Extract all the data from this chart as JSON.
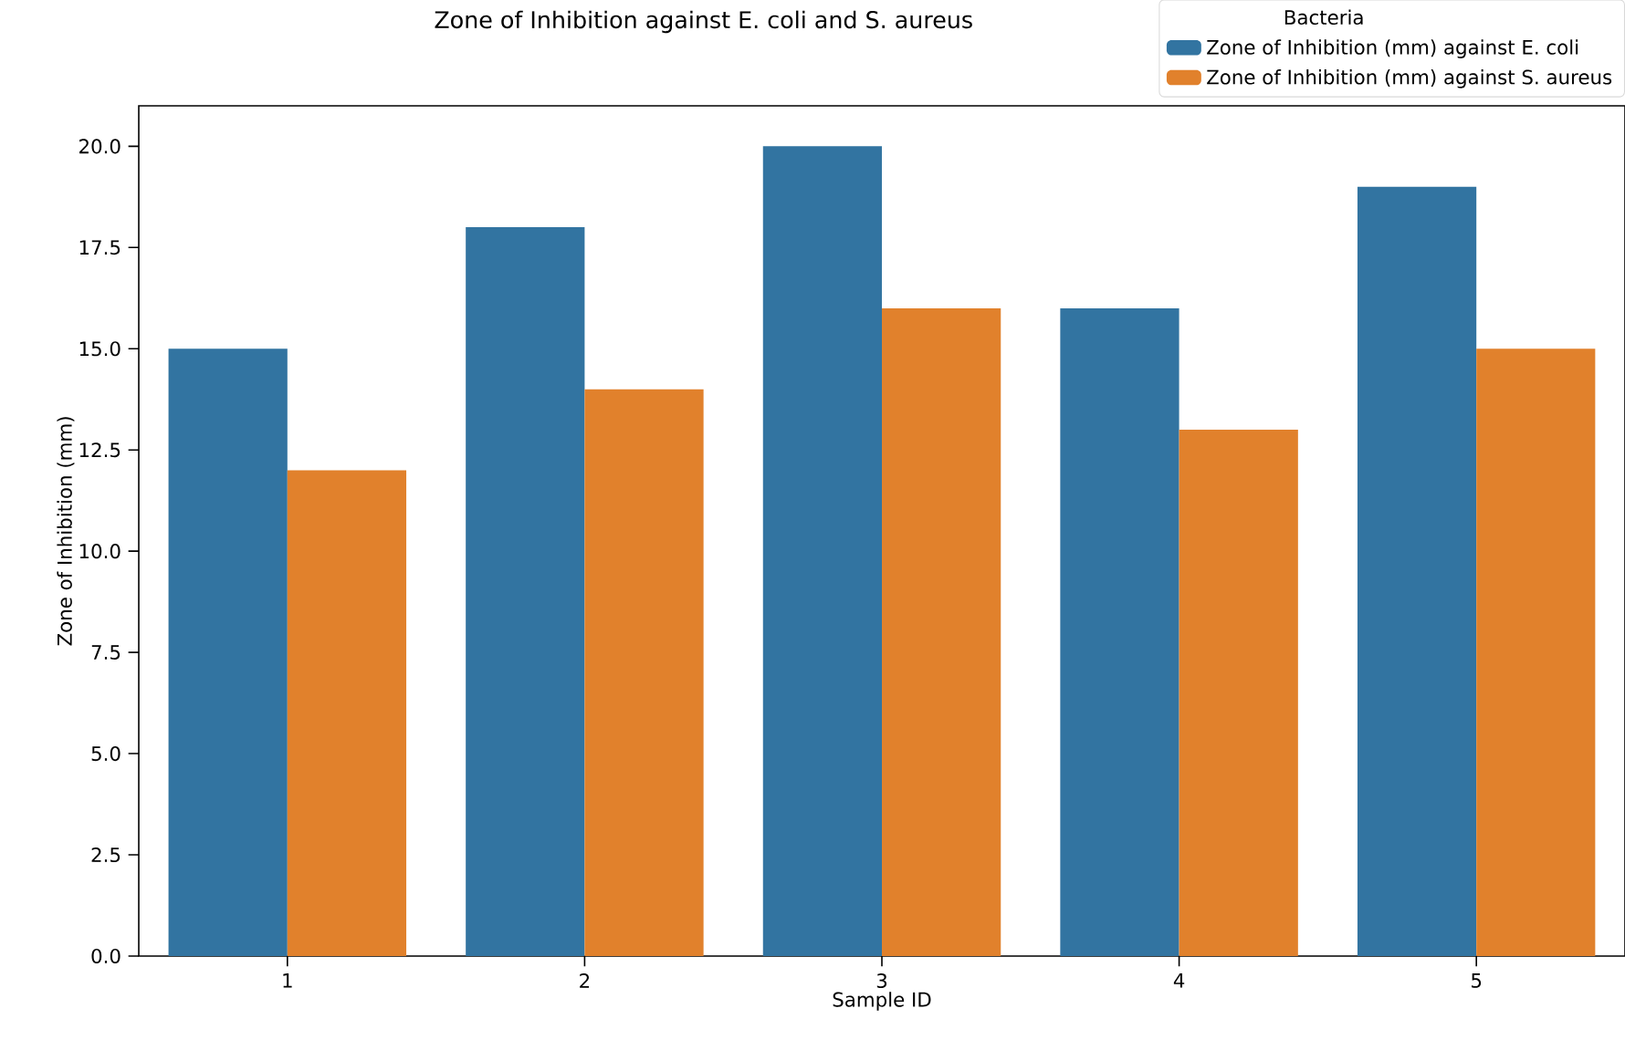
{
  "chart_data": {
    "type": "bar",
    "title": "Zone of Inhibition against E. coli and S. aureus",
    "xlabel": "Sample ID",
    "ylabel": "Zone of Inhibition (mm)",
    "legend_title": "Bacteria",
    "categories": [
      "1",
      "2",
      "3",
      "4",
      "5"
    ],
    "series": [
      {
        "name": "Zone of Inhibition (mm) against E. coli",
        "color": "#3274a1",
        "values": [
          15,
          18,
          20,
          16,
          19
        ]
      },
      {
        "name": "Zone of Inhibition (mm) against S. aureus",
        "color": "#e1812c",
        "values": [
          12,
          14,
          16,
          13,
          15
        ]
      }
    ],
    "ylim": [
      0,
      21
    ],
    "yticks": [
      {
        "value": 0,
        "label": "0.0"
      },
      2.5,
      {
        "value": 5,
        "label": "5.0"
      },
      7.5,
      {
        "value": 10,
        "label": "10.0"
      },
      12.5,
      {
        "value": 15,
        "label": "15.0"
      },
      17.5,
      {
        "value": 20,
        "label": "20.0"
      }
    ],
    "legend": "top right"
  }
}
